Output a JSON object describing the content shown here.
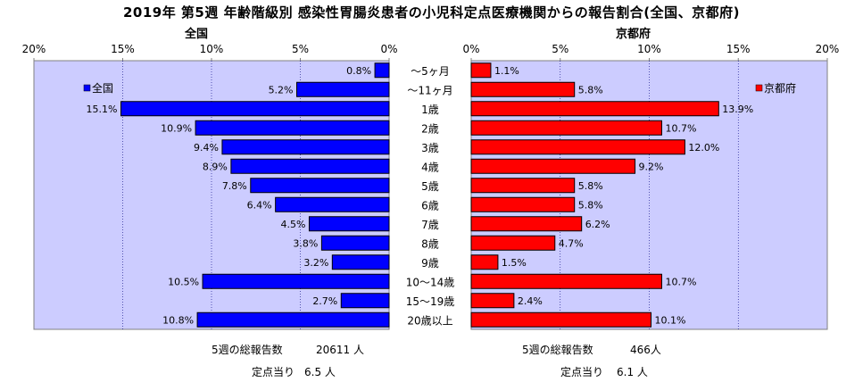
{
  "title": "2019年 第5週 年齢階級別 感染性胃腸炎患者の小児科定点医療機関からの報告割合(全国、京都府)",
  "left_panel_title": "全国",
  "right_panel_title": "京都府",
  "colors": {
    "national": "#0000ff",
    "kyoto": "#ff0000",
    "plot_bg": "#ccccff",
    "border": "#808080"
  },
  "chart_data": [
    {
      "type": "bar",
      "orientation": "horizontal",
      "direction": "reversed",
      "title": "全国",
      "categories": [
        "～5ヶ月",
        "～11ヶ月",
        "1歳",
        "2歳",
        "3歳",
        "4歳",
        "5歳",
        "6歳",
        "7歳",
        "8歳",
        "9歳",
        "10～14歳",
        "15～19歳",
        "20歳以上"
      ],
      "series": [
        {
          "name": "全国",
          "values": [
            0.8,
            5.2,
            15.1,
            10.9,
            9.4,
            8.9,
            7.8,
            6.4,
            4.5,
            3.8,
            3.2,
            10.5,
            2.7,
            10.8
          ]
        }
      ],
      "value_labels": [
        "0.8%",
        "5.2%",
        "15.1%",
        "10.9%",
        "9.4%",
        "8.9%",
        "7.8%",
        "6.4%",
        "4.5%",
        "3.8%",
        "3.2%",
        "10.5%",
        "2.7%",
        "10.8%"
      ],
      "xlim": [
        0,
        20
      ],
      "ticks": [
        "20%",
        "15%",
        "10%",
        "5%",
        "0%"
      ],
      "legend": "top-left",
      "grid": true
    },
    {
      "type": "bar",
      "orientation": "horizontal",
      "title": "京都府",
      "categories": [
        "～5ヶ月",
        "～11ヶ月",
        "1歳",
        "2歳",
        "3歳",
        "4歳",
        "5歳",
        "6歳",
        "7歳",
        "8歳",
        "9歳",
        "10～14歳",
        "15～19歳",
        "20歳以上"
      ],
      "series": [
        {
          "name": "京都府",
          "values": [
            1.1,
            5.8,
            13.9,
            10.7,
            12.0,
            9.2,
            5.8,
            5.8,
            6.2,
            4.7,
            1.5,
            10.7,
            2.4,
            10.1
          ]
        }
      ],
      "value_labels": [
        "1.1%",
        "5.8%",
        "13.9%",
        "10.7%",
        "12.0%",
        "9.2%",
        "5.8%",
        "5.8%",
        "6.2%",
        "4.7%",
        "1.5%",
        "10.7%",
        "2.4%",
        "10.1%"
      ],
      "xlim": [
        0,
        20
      ],
      "ticks": [
        "0%",
        "5%",
        "10%",
        "15%",
        "20%"
      ],
      "legend": "top-right",
      "grid": true
    }
  ],
  "footer": {
    "national": {
      "total_label": "5週の総報告数",
      "total_value": "20611 人",
      "per_site_label": "定点当り",
      "per_site_value": "6.5 人"
    },
    "kyoto": {
      "total_label": "5週の総報告数",
      "total_value": "466人",
      "per_site_label": "定点当り",
      "per_site_value": "6.1 人"
    }
  }
}
